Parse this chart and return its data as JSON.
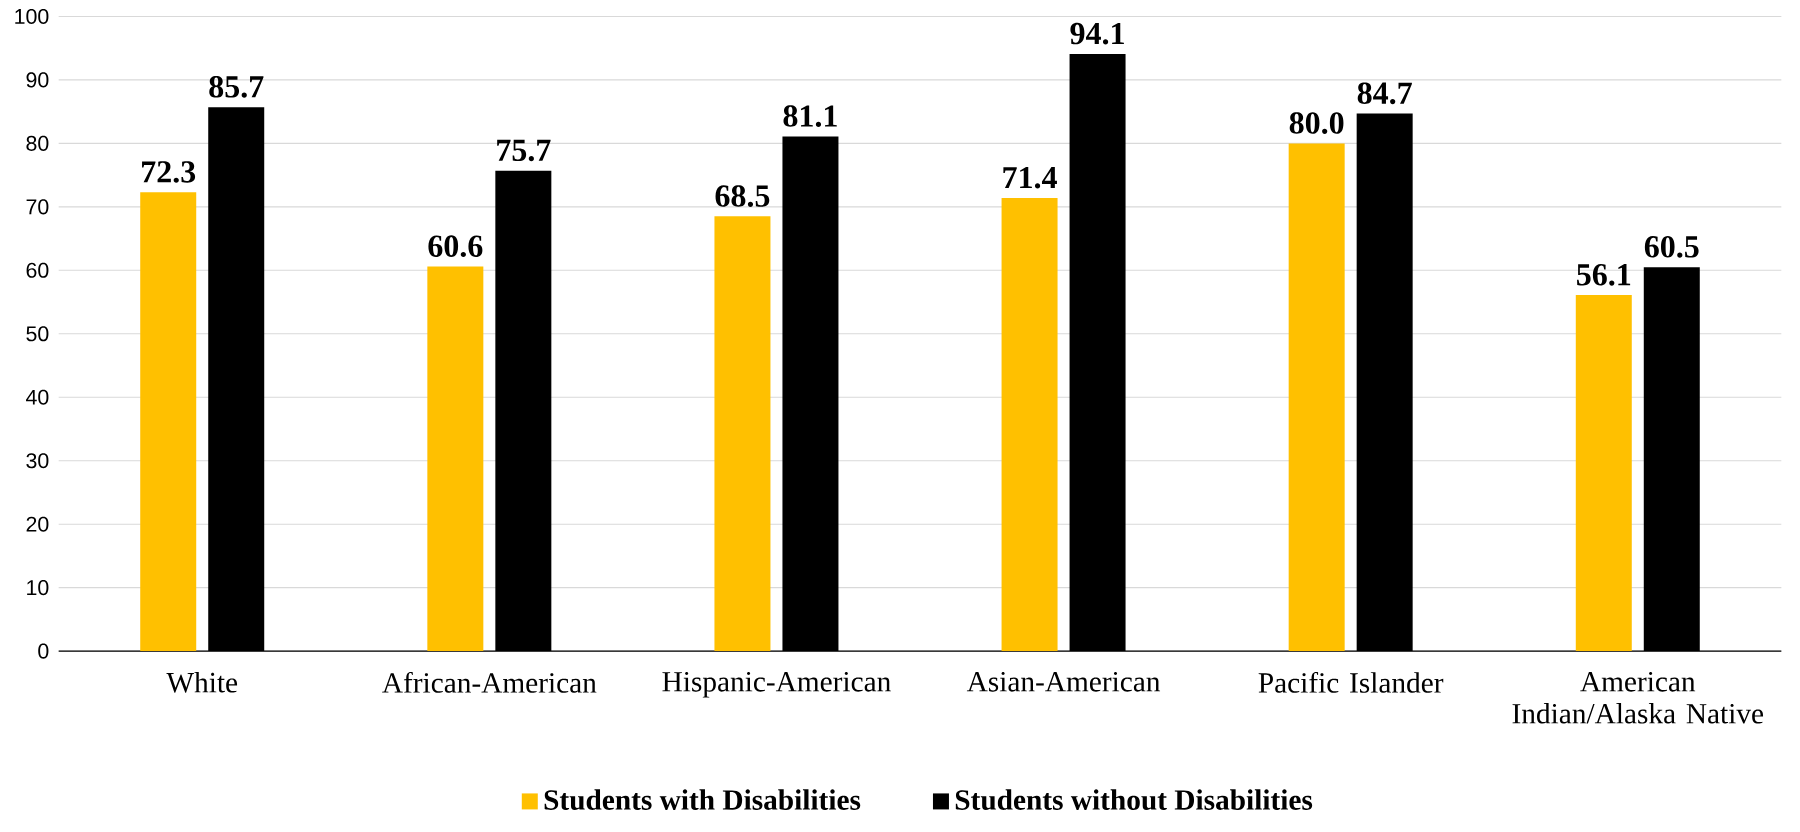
{
  "chart_data": {
    "type": "bar",
    "categories": [
      "White",
      "African-American",
      "Hispanic-American",
      "Asian-American",
      "Pacific Islander",
      "American Indian/Alaska Native"
    ],
    "series": [
      {
        "name": "Students with Disabilities",
        "color": "#ffc000",
        "values": [
          72.3,
          60.6,
          68.5,
          71.4,
          80.0,
          56.1
        ],
        "value_labels": [
          "72.3",
          "60.6",
          "68.5",
          "71.4",
          "80.0",
          "56.1"
        ]
      },
      {
        "name": "Students without Disabilities",
        "color": "#000000",
        "values": [
          85.7,
          75.7,
          81.1,
          94.1,
          84.7,
          60.5
        ],
        "value_labels": [
          "85.7",
          "75.7",
          "81.1",
          "94.1",
          "84.7",
          "60.5"
        ]
      }
    ],
    "ylim": [
      0,
      100
    ],
    "yticks": [
      0,
      10,
      20,
      30,
      40,
      50,
      60,
      70,
      80,
      90,
      100
    ],
    "grid": "y",
    "legend": "bottom"
  }
}
